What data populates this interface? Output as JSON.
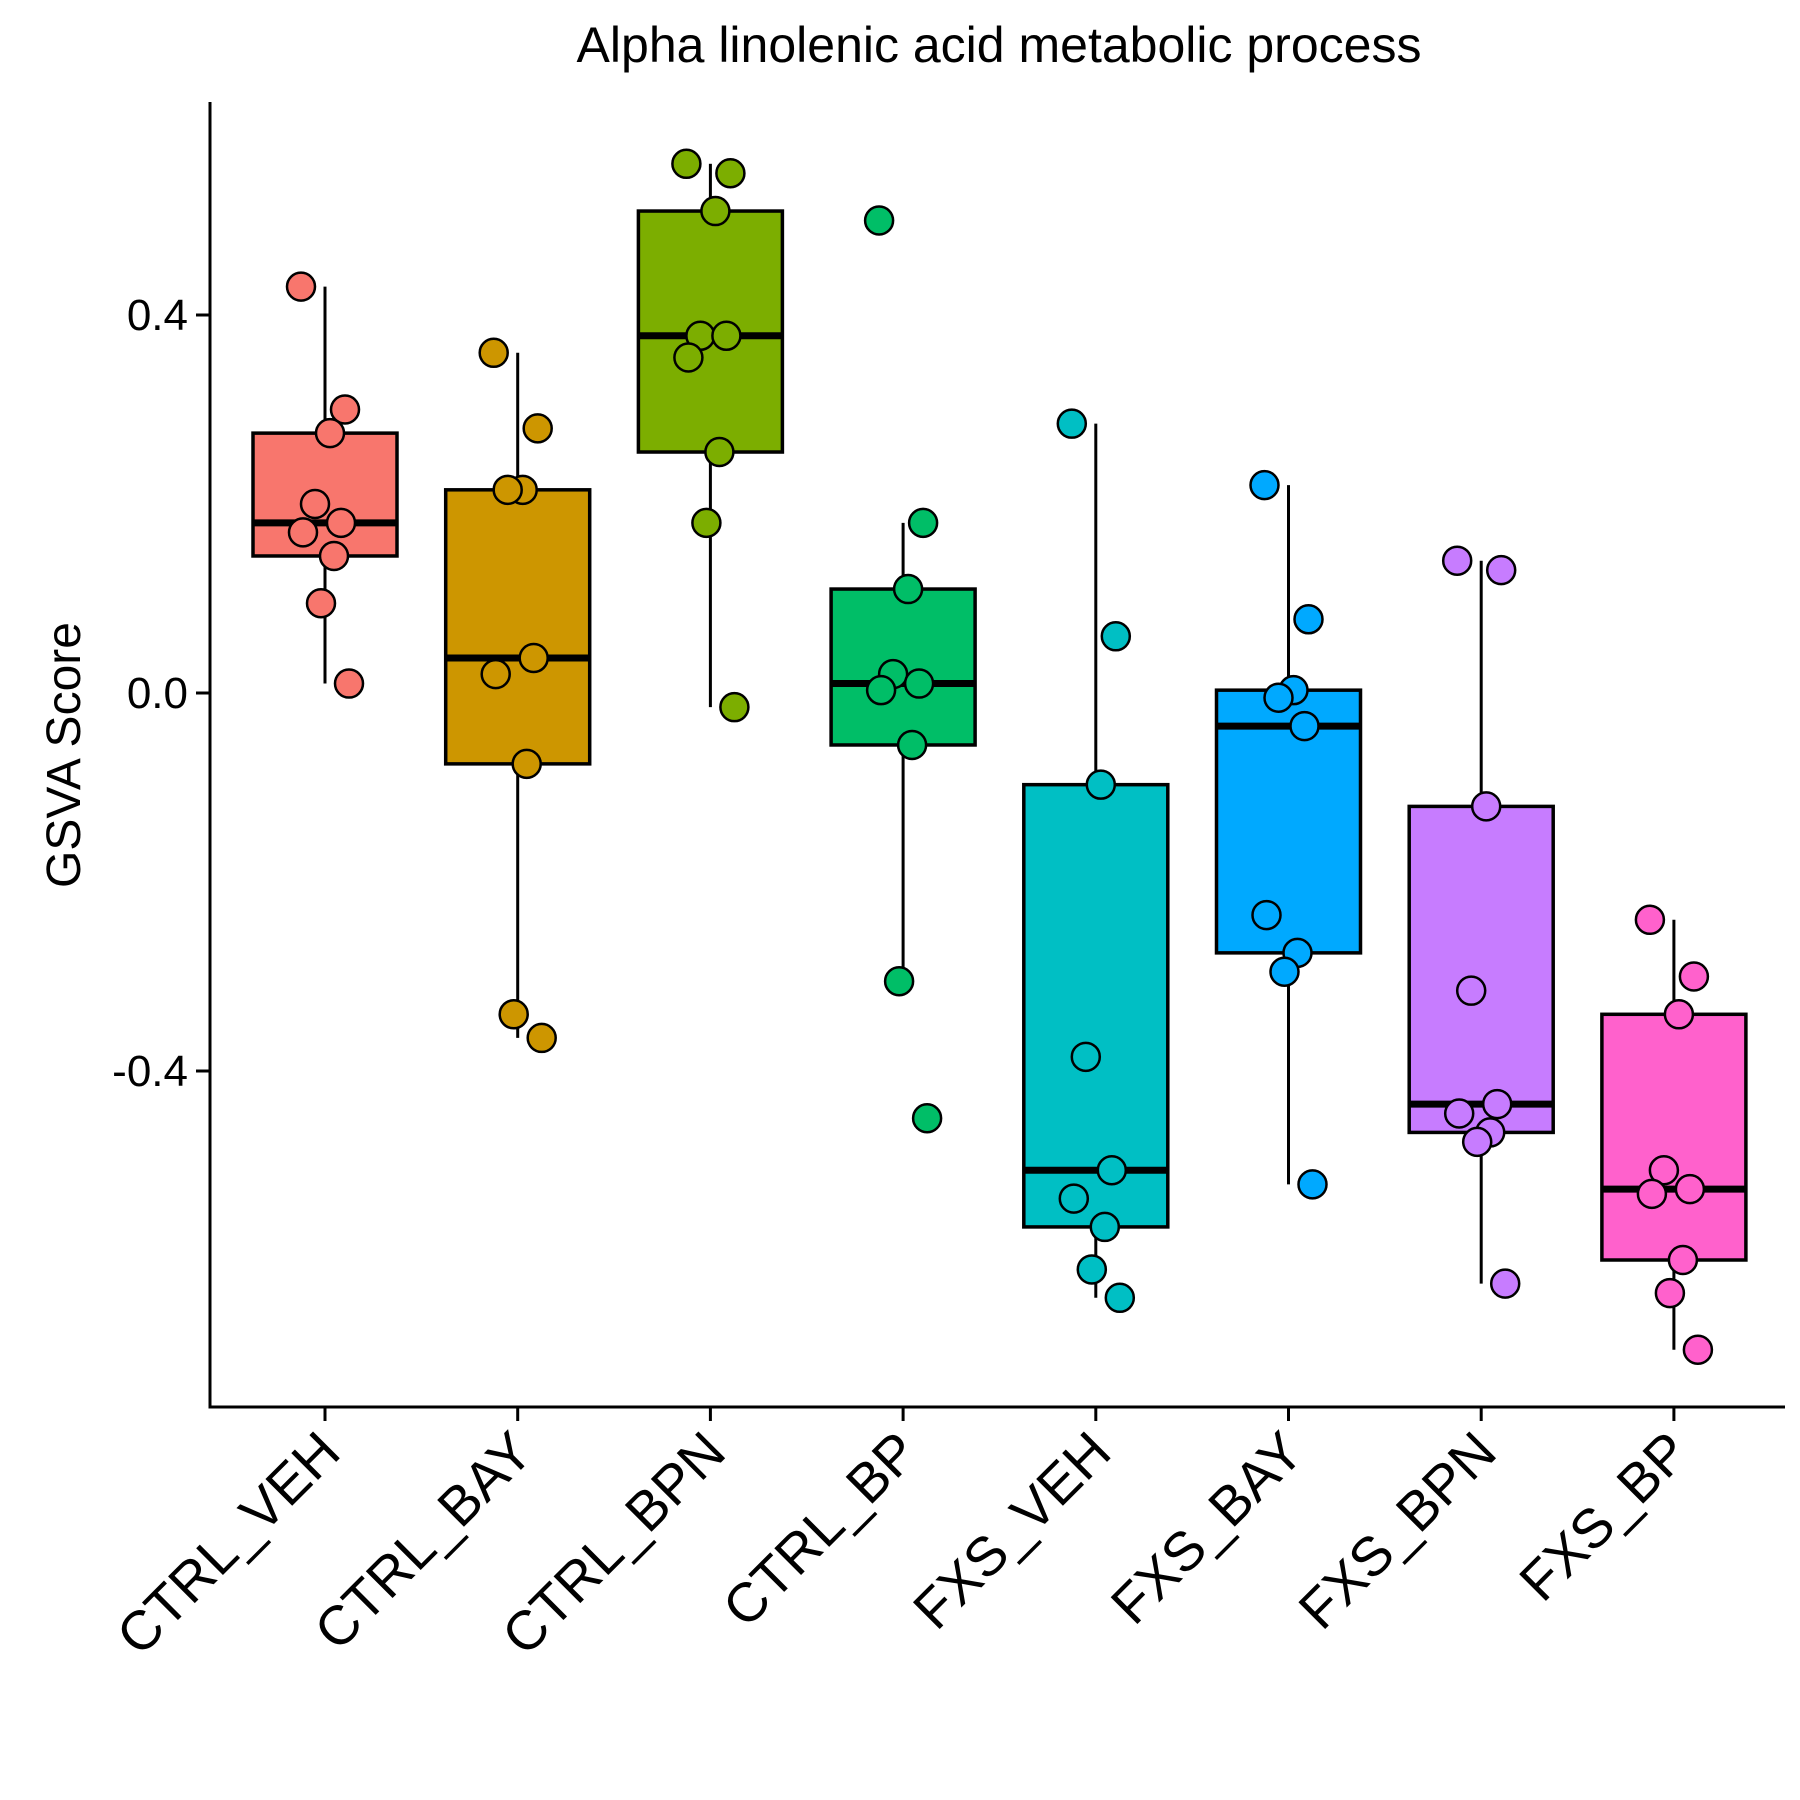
{
  "chart_data": {
    "type": "box",
    "title": "Alpha linolenic acid metabolic process",
    "xlabel": "",
    "ylabel": "GSVA Score",
    "ylim": [
      -0.75,
      0.63
    ],
    "yticks": [
      {
        "value": 0.4,
        "label": "0.4"
      },
      {
        "value": 0.0,
        "label": "0.0"
      },
      {
        "value": -0.4,
        "label": "-0.4"
      }
    ],
    "grid": false,
    "legend": "none",
    "categories": [
      "CTRL_VEH",
      "CTRL_BAY",
      "CTRL_BPN",
      "CTRL_BP",
      "FXS_VEH",
      "FXS_BAY",
      "FXS_BPN",
      "FXS_BP"
    ],
    "colors": [
      "#F8766D",
      "#CD9600",
      "#7CAE00",
      "#00BE67",
      "#00BFC4",
      "#00A9FF",
      "#C77CFF",
      "#FF61CC"
    ],
    "boxes": [
      {
        "whisker_low": 0.01,
        "q1": 0.145,
        "median": 0.18,
        "q3": 0.275,
        "whisker_high": 0.43
      },
      {
        "whisker_low": -0.365,
        "q1": -0.075,
        "median": 0.037,
        "q3": 0.215,
        "whisker_high": 0.36
      },
      {
        "whisker_low": -0.015,
        "q1": 0.255,
        "median": 0.378,
        "q3": 0.51,
        "whisker_high": 0.56
      },
      {
        "whisker_low": -0.305,
        "q1": -0.055,
        "median": 0.01,
        "q3": 0.11,
        "whisker_high": 0.18
      },
      {
        "whisker_low": -0.64,
        "q1": -0.565,
        "median": -0.505,
        "q3": -0.097,
        "whisker_high": 0.285
      },
      {
        "whisker_low": -0.52,
        "q1": -0.275,
        "median": -0.035,
        "q3": 0.003,
        "whisker_high": 0.22
      },
      {
        "whisker_low": -0.625,
        "q1": -0.465,
        "median": -0.435,
        "q3": -0.12,
        "whisker_high": 0.14
      },
      {
        "whisker_low": -0.695,
        "q1": -0.6,
        "median": -0.525,
        "q3": -0.34,
        "whisker_high": -0.24
      }
    ],
    "points": [
      [
        0.43,
        0.3,
        0.275,
        0.2,
        0.18,
        0.17,
        0.145,
        0.095,
        0.01
      ],
      [
        0.36,
        0.28,
        0.215,
        0.215,
        0.037,
        0.02,
        -0.075,
        -0.34,
        -0.365
      ],
      [
        0.56,
        0.55,
        0.51,
        0.378,
        0.378,
        0.355,
        0.255,
        0.18,
        -0.015
      ],
      [
        0.5,
        0.18,
        0.11,
        0.02,
        0.01,
        0.003,
        -0.055,
        -0.305,
        -0.45
      ],
      [
        0.285,
        0.06,
        -0.097,
        -0.385,
        -0.505,
        -0.535,
        -0.565,
        -0.61,
        -0.64
      ],
      [
        0.22,
        0.078,
        0.003,
        -0.005,
        -0.035,
        -0.235,
        -0.275,
        -0.295,
        -0.52
      ],
      [
        0.14,
        0.13,
        -0.12,
        -0.315,
        -0.435,
        -0.445,
        -0.465,
        -0.475,
        -0.625
      ],
      [
        -0.24,
        -0.3,
        -0.34,
        -0.505,
        -0.525,
        -0.53,
        -0.6,
        -0.635,
        -0.695
      ]
    ]
  }
}
